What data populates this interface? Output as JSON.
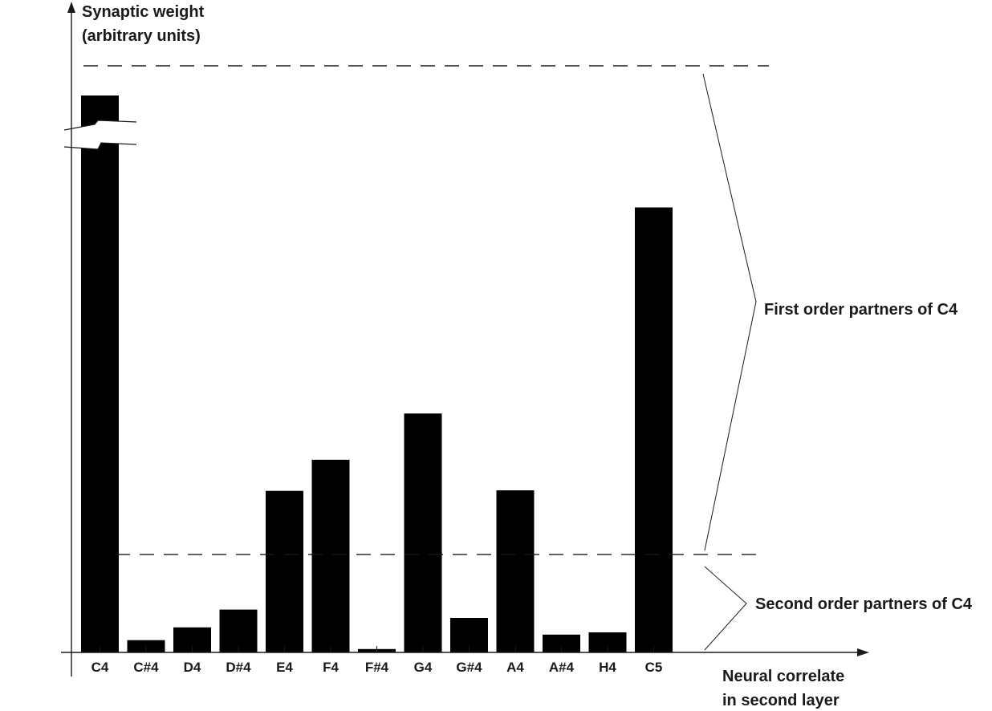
{
  "chart_data": {
    "type": "bar",
    "title": "",
    "ylabel_lines": [
      "Synaptic weight",
      "(arbitrary units)"
    ],
    "xlabel_lines": [
      "Neural correlate",
      "in second layer"
    ],
    "categories": [
      "C4",
      "C#4",
      "D4",
      "D#4",
      "E4",
      "F4",
      "F#4",
      "G4",
      "G#4",
      "A4",
      "A#4",
      "H4",
      "C5"
    ],
    "values": [
      100,
      2.2,
      4.5,
      7.7,
      29,
      34.6,
      0.6,
      42.9,
      6.2,
      29.1,
      3.2,
      3.6,
      79.9
    ],
    "ylim": [
      0,
      105
    ],
    "y_axis_break": true,
    "grid": false,
    "thresholds": [
      {
        "value": 100,
        "style": "dashed"
      },
      {
        "value": 17.6,
        "style": "dashed"
      }
    ],
    "annotations": [
      "First order partners of C4",
      "Second order partners of C4"
    ],
    "colors": {
      "bar": "#000000",
      "axis": "#1a1a1a",
      "text": "#1a1a1a"
    }
  }
}
